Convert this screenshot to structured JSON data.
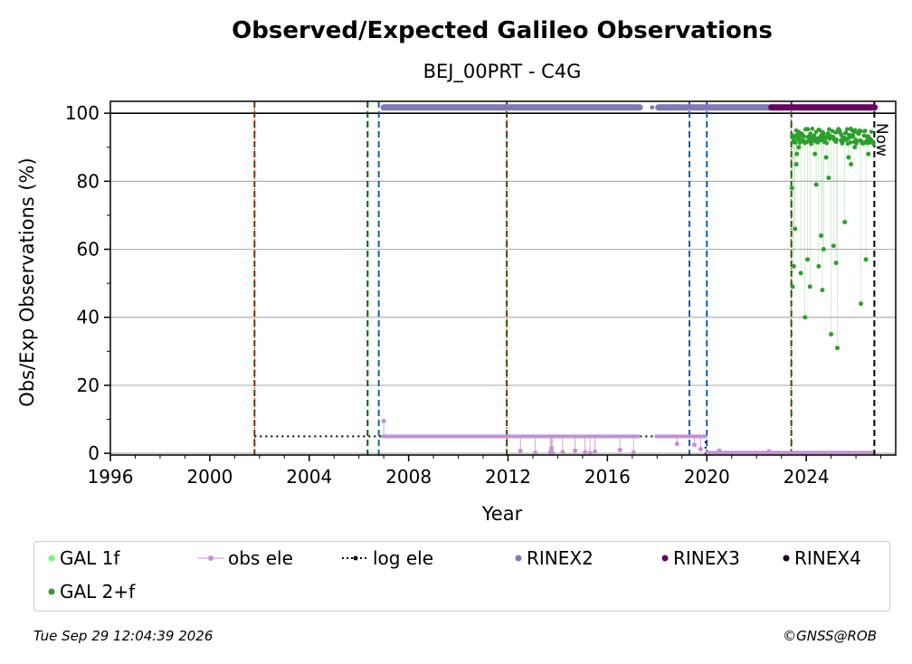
{
  "footer": {
    "timestamp": "Tue Sep 29 12:04:39 2026",
    "copyright": "©GNSS@ROB"
  },
  "chart_data": {
    "type": "scatter",
    "title": "Observed/Expected Galileo Observations",
    "subtitle": "BEJ_00PRT - C4G",
    "xlabel": "Year",
    "ylabel": "Obs/Exp Observations (%)",
    "xlim": [
      1996.0,
      2027.6
    ],
    "ylim": [
      -0.5,
      103.5
    ],
    "xticks": [
      1996,
      2000,
      2004,
      2008,
      2012,
      2016,
      2020,
      2024
    ],
    "yticks": [
      0,
      20,
      40,
      60,
      80,
      100
    ],
    "grid": "horizontal",
    "legend_position": "bottom",
    "now_label": "Now",
    "now_x": 2026.74,
    "colors": {
      "gal_1f": "#66ff66",
      "gal_2f": "#2ca02c",
      "obs_ele": "#c88fd4",
      "log_ele": "#000000",
      "rinex2": "#8079b9",
      "rinex3": "#660066",
      "rinex4": "#1a0019",
      "green_line": "#006400",
      "blue_line": "#1060b0",
      "red_line": "#ff0000"
    },
    "event_lines": [
      {
        "x": 2001.8,
        "color": "green",
        "red_center": true
      },
      {
        "x": 2006.35,
        "color": "green",
        "red_center": false
      },
      {
        "x": 2006.8,
        "color": "blue",
        "red_center": false
      },
      {
        "x": 2011.95,
        "color": "green",
        "red_center": true
      },
      {
        "x": 2019.3,
        "color": "blue",
        "red_center": false
      },
      {
        "x": 2020.0,
        "color": "blue",
        "red_center": false
      },
      {
        "x": 2023.4,
        "color": "green",
        "red_center": true
      }
    ],
    "series": [
      {
        "name": "GAL 1f",
        "values": []
      },
      {
        "name": "GAL 2+f",
        "x": [
          2023.42,
          2023.45,
          2023.5,
          2023.55,
          2023.6,
          2023.62,
          2023.7,
          2023.78,
          2023.85,
          2023.95,
          2024.05,
          2024.15,
          2024.2,
          2024.35,
          2024.4,
          2024.5,
          2024.6,
          2024.65,
          2024.7,
          2024.75,
          2024.8,
          2024.9,
          2025.0,
          2025.1,
          2025.2,
          2025.25,
          2025.4,
          2025.55,
          2025.7,
          2025.8,
          2025.95,
          2026.2,
          2026.4,
          2026.5,
          2026.6
        ],
        "values": [
          78,
          49,
          55,
          66,
          85,
          88,
          90,
          53,
          92,
          40,
          57,
          49,
          91,
          88,
          79,
          55,
          64,
          48,
          60,
          93,
          87,
          81,
          35,
          61,
          56,
          31,
          92,
          68,
          87,
          85,
          90,
          44,
          57,
          88,
          92
        ],
        "dense_band": {
          "x_start": 2023.42,
          "x_end": 2026.72,
          "y_low": 91,
          "y_high": 95.5
        }
      },
      {
        "name": "obs ele",
        "line_segments": [
          {
            "x_start": 2006.95,
            "x_end": 2017.3,
            "y": 5
          },
          {
            "x_start": 2017.95,
            "x_end": 2020.0,
            "y": 5
          },
          {
            "x_start": 2020.0,
            "x_end": 2026.7,
            "y": 0.2
          }
        ],
        "x": [
          2007.0,
          2012.5,
          2013.1,
          2013.7,
          2013.75,
          2013.8,
          2014.2,
          2014.7,
          2015.1,
          2015.3,
          2015.5,
          2016.5,
          2017.05,
          2018.8,
          2019.5,
          2019.75,
          2020.5,
          2022.5
        ],
        "values": [
          9.5,
          0.7,
          0.2,
          0.3,
          1.5,
          0.1,
          0.4,
          0.8,
          0.3,
          0.1,
          0.5,
          1.0,
          0.2,
          2.8,
          2.5,
          1.2,
          0.8,
          0.6
        ]
      },
      {
        "name": "log ele",
        "x": [
          2001.8,
          2019.95,
          2019.95,
          2026.74
        ],
        "values": [
          5,
          5,
          0,
          0
        ]
      },
      {
        "name": "RINEX2",
        "segments": [
          [
            2007.0,
            2017.3
          ],
          [
            2018.05,
            2022.6
          ]
        ],
        "y": 101.7
      },
      {
        "name": "RINEX3",
        "segments": [
          [
            2022.6,
            2026.75
          ]
        ],
        "y": 101.7
      },
      {
        "name": "RINEX4",
        "values": []
      }
    ]
  }
}
